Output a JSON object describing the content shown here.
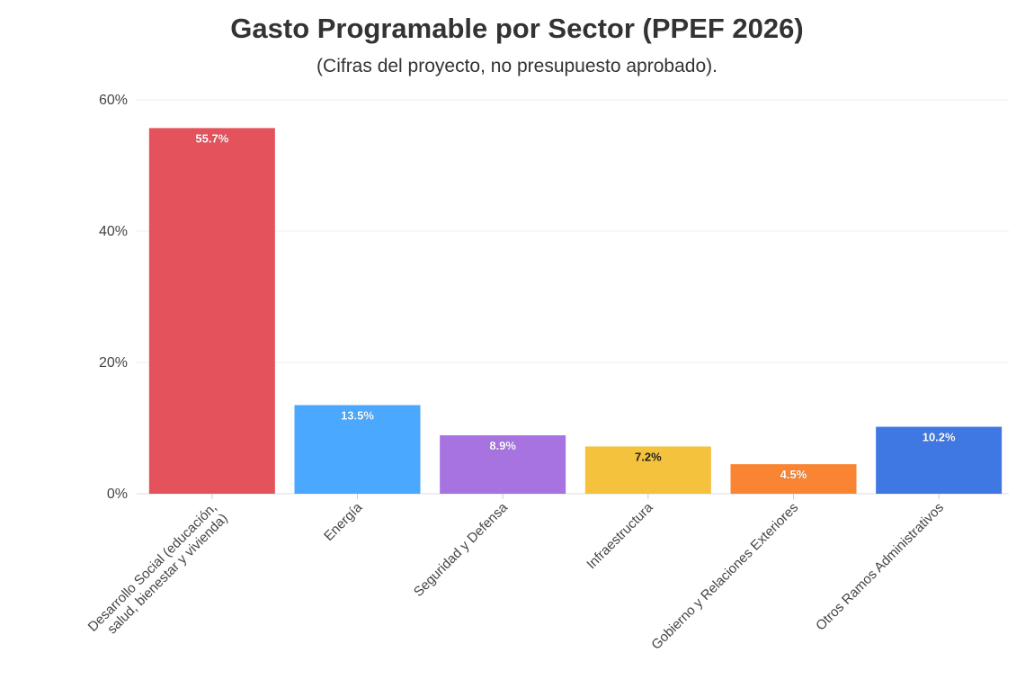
{
  "chart_data": {
    "type": "bar",
    "title": "Gasto Programable por Sector (PPEF 2026)",
    "subtitle": "(Cifras del proyecto, no presupuesto aprobado).",
    "xlabel": "",
    "ylabel": "",
    "ylim": [
      0,
      60
    ],
    "yticks": [
      0,
      20,
      40,
      60
    ],
    "ytick_labels": [
      "0%",
      "20%",
      "40%",
      "60%"
    ],
    "grid": true,
    "categories": [
      [
        "Desarrollo Social (educación,",
        "salud, bienestar y vivienda)"
      ],
      [
        "Energía"
      ],
      [
        "Seguridad y Defensa"
      ],
      [
        "Infraestructura"
      ],
      [
        "Gobierno y Relaciones Exteriores"
      ],
      [
        "Otros Ramos Administrativos"
      ]
    ],
    "values": [
      55.7,
      13.5,
      8.9,
      7.2,
      4.5,
      10.2
    ],
    "data_labels": [
      "55.7%",
      "13.5%",
      "8.9%",
      "7.2%",
      "4.5%",
      "10.2%"
    ],
    "colors": [
      "#e4535c",
      "#4aa8ff",
      "#a673e0",
      "#f4c23c",
      "#f98532",
      "#3f78e2"
    ],
    "label_colors": [
      "#ffffff",
      "#ffffff",
      "#ffffff",
      "#222222",
      "#ffffff",
      "#ffffff"
    ]
  }
}
